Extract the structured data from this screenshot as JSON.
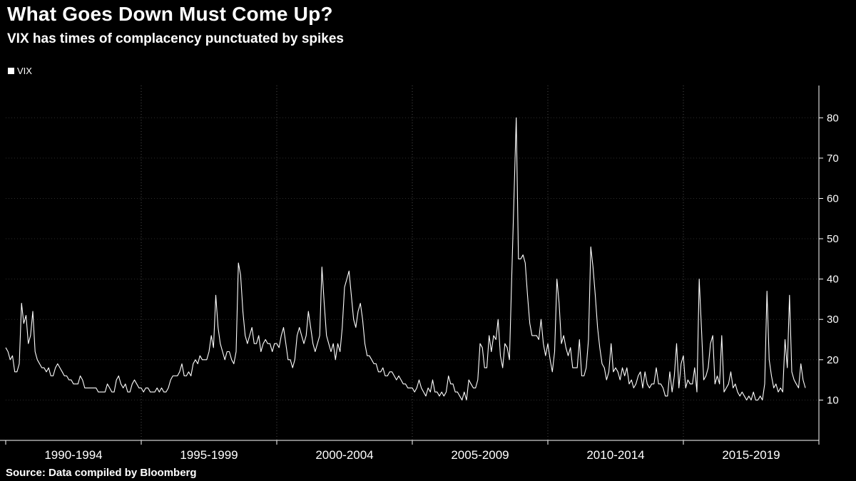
{
  "header": {
    "title": "What Goes Down Must Come Up?",
    "subtitle": "VIX has times of complacency punctuated by spikes"
  },
  "legend": {
    "items": [
      {
        "label": "VIX",
        "color": "#ffffff"
      }
    ]
  },
  "source": {
    "text": "Source: Data compiled by Bloomberg"
  },
  "chart_data": {
    "type": "line",
    "title": "What Goes Down Must Come Up?",
    "subtitle": "VIX has times of complacency punctuated by spikes",
    "xlabel": "",
    "ylabel": "",
    "background": "#000000",
    "grid": "dotted",
    "legend_position": "top-left",
    "axis_side": "right",
    "ylim": [
      0,
      88
    ],
    "yticks": [
      10,
      20,
      30,
      40,
      50,
      60,
      70,
      80
    ],
    "x_range": [
      1990,
      2020
    ],
    "x_gridline_years": [
      1995,
      2000,
      2005,
      2010,
      2015
    ],
    "x_tick_years": [
      1990,
      1995,
      2000,
      2005,
      2010,
      2015,
      2020
    ],
    "x_labels": [
      {
        "label": "1990-1994",
        "center_year": 1992.5
      },
      {
        "label": "1995-1999",
        "center_year": 1997.5
      },
      {
        "label": "2000-2004",
        "center_year": 2002.5
      },
      {
        "label": "2005-2009",
        "center_year": 2007.5
      },
      {
        "label": "2010-2014",
        "center_year": 2012.5
      },
      {
        "label": "2015-2019",
        "center_year": 2017.5
      }
    ],
    "series": [
      {
        "name": "VIX",
        "color": "#ffffff",
        "x_start_year": 1990,
        "x_step_months": 1,
        "values": [
          23,
          22,
          20,
          21,
          17,
          17,
          19,
          34,
          29,
          31,
          24,
          26,
          32,
          22,
          20,
          19,
          18,
          18,
          17,
          18,
          16,
          16,
          18,
          19,
          18,
          17,
          16,
          16,
          15,
          15,
          14,
          14,
          14,
          16,
          15,
          13,
          13,
          13,
          13,
          13,
          13,
          12,
          12,
          12,
          12,
          14,
          13,
          12,
          12,
          15,
          16,
          14,
          13,
          14,
          12,
          12,
          14,
          15,
          14,
          13,
          13,
          12,
          13,
          13,
          12,
          12,
          12,
          13,
          12,
          13,
          12,
          12,
          13,
          15,
          16,
          16,
          16,
          17,
          19,
          16,
          16,
          17,
          16,
          19,
          20,
          19,
          21,
          20,
          20,
          20,
          22,
          26,
          23,
          36,
          28,
          24,
          22,
          20,
          22,
          22,
          20,
          19,
          22,
          44,
          41,
          32,
          26,
          24,
          26,
          28,
          24,
          24,
          26,
          22,
          24,
          25,
          24,
          24,
          22,
          24,
          24,
          23,
          26,
          28,
          24,
          20,
          20,
          18,
          20,
          26,
          28,
          26,
          24,
          26,
          32,
          28,
          24,
          22,
          24,
          26,
          43,
          34,
          26,
          24,
          22,
          24,
          20,
          24,
          22,
          28,
          38,
          40,
          42,
          36,
          30,
          28,
          32,
          34,
          30,
          24,
          21,
          21,
          20,
          19,
          19,
          17,
          17,
          18,
          16,
          16,
          17,
          17,
          16,
          15,
          16,
          15,
          14,
          14,
          13,
          13,
          13,
          12,
          13,
          15,
          13,
          12,
          11,
          13,
          12,
          15,
          12,
          12,
          11,
          12,
          11,
          12,
          16,
          14,
          14,
          12,
          12,
          11,
          10,
          12,
          10,
          15,
          14,
          13,
          13,
          15,
          24,
          23,
          18,
          18,
          26,
          22,
          26,
          25,
          30,
          21,
          18,
          24,
          23,
          20,
          40,
          60,
          80,
          45,
          45,
          46,
          44,
          36,
          29,
          26,
          26,
          26,
          25,
          30,
          24,
          21,
          24,
          20,
          17,
          22,
          40,
          34,
          24,
          26,
          23,
          21,
          23,
          18,
          18,
          18,
          25,
          16,
          16,
          18,
          25,
          48,
          43,
          36,
          28,
          23,
          19,
          18,
          15,
          17,
          24,
          17,
          18,
          17,
          15,
          18,
          16,
          18,
          14,
          15,
          13,
          14,
          16,
          17,
          13,
          17,
          14,
          13,
          14,
          14,
          18,
          14,
          14,
          13,
          11,
          11,
          17,
          12,
          16,
          24,
          13,
          19,
          21,
          13,
          15,
          14,
          14,
          18,
          12,
          40,
          28,
          15,
          16,
          18,
          24,
          26,
          14,
          16,
          14,
          26,
          12,
          13,
          14,
          17,
          13,
          14,
          12,
          11,
          12,
          11,
          10,
          11,
          10,
          12,
          10,
          10,
          11,
          10,
          14,
          37,
          20,
          16,
          13,
          14,
          12,
          13,
          12,
          25,
          18,
          36,
          17,
          15,
          14,
          13,
          19,
          15,
          13
        ]
      }
    ]
  }
}
